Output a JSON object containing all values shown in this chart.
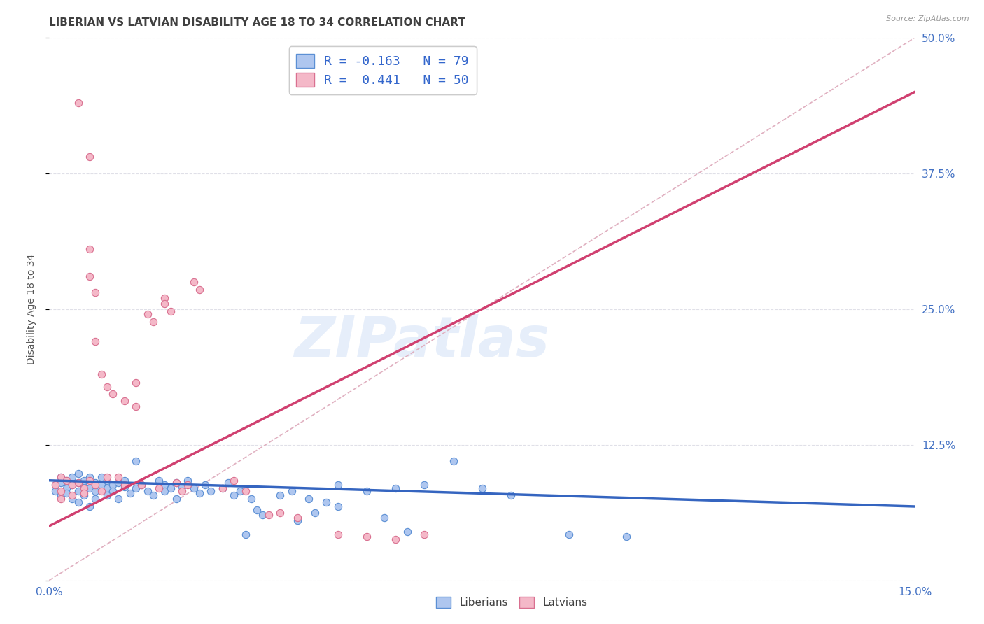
{
  "title": "LIBERIAN VS LATVIAN DISABILITY AGE 18 TO 34 CORRELATION CHART",
  "source": "Source: ZipAtlas.com",
  "ylabel_label": "Disability Age 18 to 34",
  "xlim": [
    0.0,
    0.15
  ],
  "ylim": [
    0.0,
    0.5
  ],
  "xticks": [
    0.0,
    0.05,
    0.1,
    0.15
  ],
  "xticklabels": [
    "0.0%",
    "",
    "",
    "15.0%"
  ],
  "yticks": [
    0.0,
    0.125,
    0.25,
    0.375,
    0.5
  ],
  "yticklabels": [
    "",
    "12.5%",
    "25.0%",
    "37.5%",
    "50.0%"
  ],
  "liberian_color": "#aec6ef",
  "liberian_edge": "#5b8fd4",
  "latvian_color": "#f4b8c8",
  "latvian_edge": "#d97090",
  "trend_liberian_color": "#3565c0",
  "trend_latvian_color": "#d04070",
  "trend_dashed_color": "#e0b0c0",
  "watermark": "ZIPatlas",
  "background_color": "#ffffff",
  "grid_color": "#e0e0e8",
  "tick_color": "#4472c4",
  "title_color": "#404040",
  "marker_size": 55,
  "legend_r_n_blue": "R = -0.163   N = 79",
  "legend_r_n_pink": "R =  0.441   N = 50",
  "liberian_points": [
    [
      0.001,
      0.088
    ],
    [
      0.001,
      0.082
    ],
    [
      0.002,
      0.09
    ],
    [
      0.002,
      0.078
    ],
    [
      0.002,
      0.095
    ],
    [
      0.003,
      0.085
    ],
    [
      0.003,
      0.092
    ],
    [
      0.003,
      0.08
    ],
    [
      0.004,
      0.088
    ],
    [
      0.004,
      0.075
    ],
    [
      0.004,
      0.095
    ],
    [
      0.005,
      0.09
    ],
    [
      0.005,
      0.082
    ],
    [
      0.005,
      0.072
    ],
    [
      0.005,
      0.098
    ],
    [
      0.006,
      0.086
    ],
    [
      0.006,
      0.078
    ],
    [
      0.006,
      0.092
    ],
    [
      0.007,
      0.085
    ],
    [
      0.007,
      0.095
    ],
    [
      0.007,
      0.068
    ],
    [
      0.008,
      0.09
    ],
    [
      0.008,
      0.082
    ],
    [
      0.008,
      0.075
    ],
    [
      0.009,
      0.088
    ],
    [
      0.009,
      0.095
    ],
    [
      0.01,
      0.085
    ],
    [
      0.01,
      0.092
    ],
    [
      0.01,
      0.078
    ],
    [
      0.011,
      0.088
    ],
    [
      0.011,
      0.082
    ],
    [
      0.012,
      0.09
    ],
    [
      0.012,
      0.075
    ],
    [
      0.013,
      0.086
    ],
    [
      0.013,
      0.092
    ],
    [
      0.014,
      0.08
    ],
    [
      0.015,
      0.11
    ],
    [
      0.015,
      0.085
    ],
    [
      0.016,
      0.088
    ],
    [
      0.017,
      0.082
    ],
    [
      0.018,
      0.078
    ],
    [
      0.019,
      0.092
    ],
    [
      0.02,
      0.088
    ],
    [
      0.02,
      0.082
    ],
    [
      0.021,
      0.085
    ],
    [
      0.022,
      0.09
    ],
    [
      0.022,
      0.075
    ],
    [
      0.023,
      0.086
    ],
    [
      0.024,
      0.092
    ],
    [
      0.025,
      0.085
    ],
    [
      0.026,
      0.08
    ],
    [
      0.027,
      0.088
    ],
    [
      0.028,
      0.082
    ],
    [
      0.03,
      0.085
    ],
    [
      0.031,
      0.09
    ],
    [
      0.032,
      0.078
    ],
    [
      0.033,
      0.082
    ],
    [
      0.034,
      0.042
    ],
    [
      0.035,
      0.075
    ],
    [
      0.036,
      0.065
    ],
    [
      0.037,
      0.06
    ],
    [
      0.04,
      0.078
    ],
    [
      0.042,
      0.082
    ],
    [
      0.043,
      0.055
    ],
    [
      0.045,
      0.075
    ],
    [
      0.046,
      0.062
    ],
    [
      0.048,
      0.072
    ],
    [
      0.05,
      0.088
    ],
    [
      0.05,
      0.068
    ],
    [
      0.055,
      0.082
    ],
    [
      0.058,
      0.058
    ],
    [
      0.06,
      0.085
    ],
    [
      0.062,
      0.045
    ],
    [
      0.065,
      0.088
    ],
    [
      0.07,
      0.11
    ],
    [
      0.075,
      0.085
    ],
    [
      0.08,
      0.078
    ],
    [
      0.09,
      0.042
    ],
    [
      0.1,
      0.04
    ]
  ],
  "latvian_points": [
    [
      0.001,
      0.088
    ],
    [
      0.002,
      0.095
    ],
    [
      0.002,
      0.082
    ],
    [
      0.002,
      0.075
    ],
    [
      0.003,
      0.092
    ],
    [
      0.004,
      0.088
    ],
    [
      0.004,
      0.078
    ],
    [
      0.005,
      0.44
    ],
    [
      0.005,
      0.09
    ],
    [
      0.006,
      0.085
    ],
    [
      0.006,
      0.08
    ],
    [
      0.007,
      0.39
    ],
    [
      0.007,
      0.305
    ],
    [
      0.007,
      0.28
    ],
    [
      0.007,
      0.092
    ],
    [
      0.008,
      0.265
    ],
    [
      0.008,
      0.22
    ],
    [
      0.008,
      0.088
    ],
    [
      0.009,
      0.19
    ],
    [
      0.009,
      0.082
    ],
    [
      0.01,
      0.178
    ],
    [
      0.01,
      0.095
    ],
    [
      0.011,
      0.172
    ],
    [
      0.012,
      0.095
    ],
    [
      0.013,
      0.165
    ],
    [
      0.013,
      0.088
    ],
    [
      0.015,
      0.182
    ],
    [
      0.015,
      0.16
    ],
    [
      0.016,
      0.088
    ],
    [
      0.017,
      0.245
    ],
    [
      0.018,
      0.238
    ],
    [
      0.019,
      0.085
    ],
    [
      0.02,
      0.26
    ],
    [
      0.02,
      0.255
    ],
    [
      0.021,
      0.248
    ],
    [
      0.022,
      0.09
    ],
    [
      0.023,
      0.082
    ],
    [
      0.024,
      0.088
    ],
    [
      0.025,
      0.275
    ],
    [
      0.026,
      0.268
    ],
    [
      0.03,
      0.085
    ],
    [
      0.032,
      0.092
    ],
    [
      0.034,
      0.082
    ],
    [
      0.038,
      0.06
    ],
    [
      0.04,
      0.062
    ],
    [
      0.043,
      0.058
    ],
    [
      0.05,
      0.042
    ],
    [
      0.055,
      0.04
    ],
    [
      0.06,
      0.038
    ],
    [
      0.065,
      0.042
    ]
  ],
  "liberian_trend_x": [
    0.0,
    0.15
  ],
  "liberian_trend_y": [
    0.092,
    0.068
  ],
  "latvian_trend_x": [
    0.0,
    0.15
  ],
  "latvian_trend_y": [
    0.05,
    0.45
  ]
}
